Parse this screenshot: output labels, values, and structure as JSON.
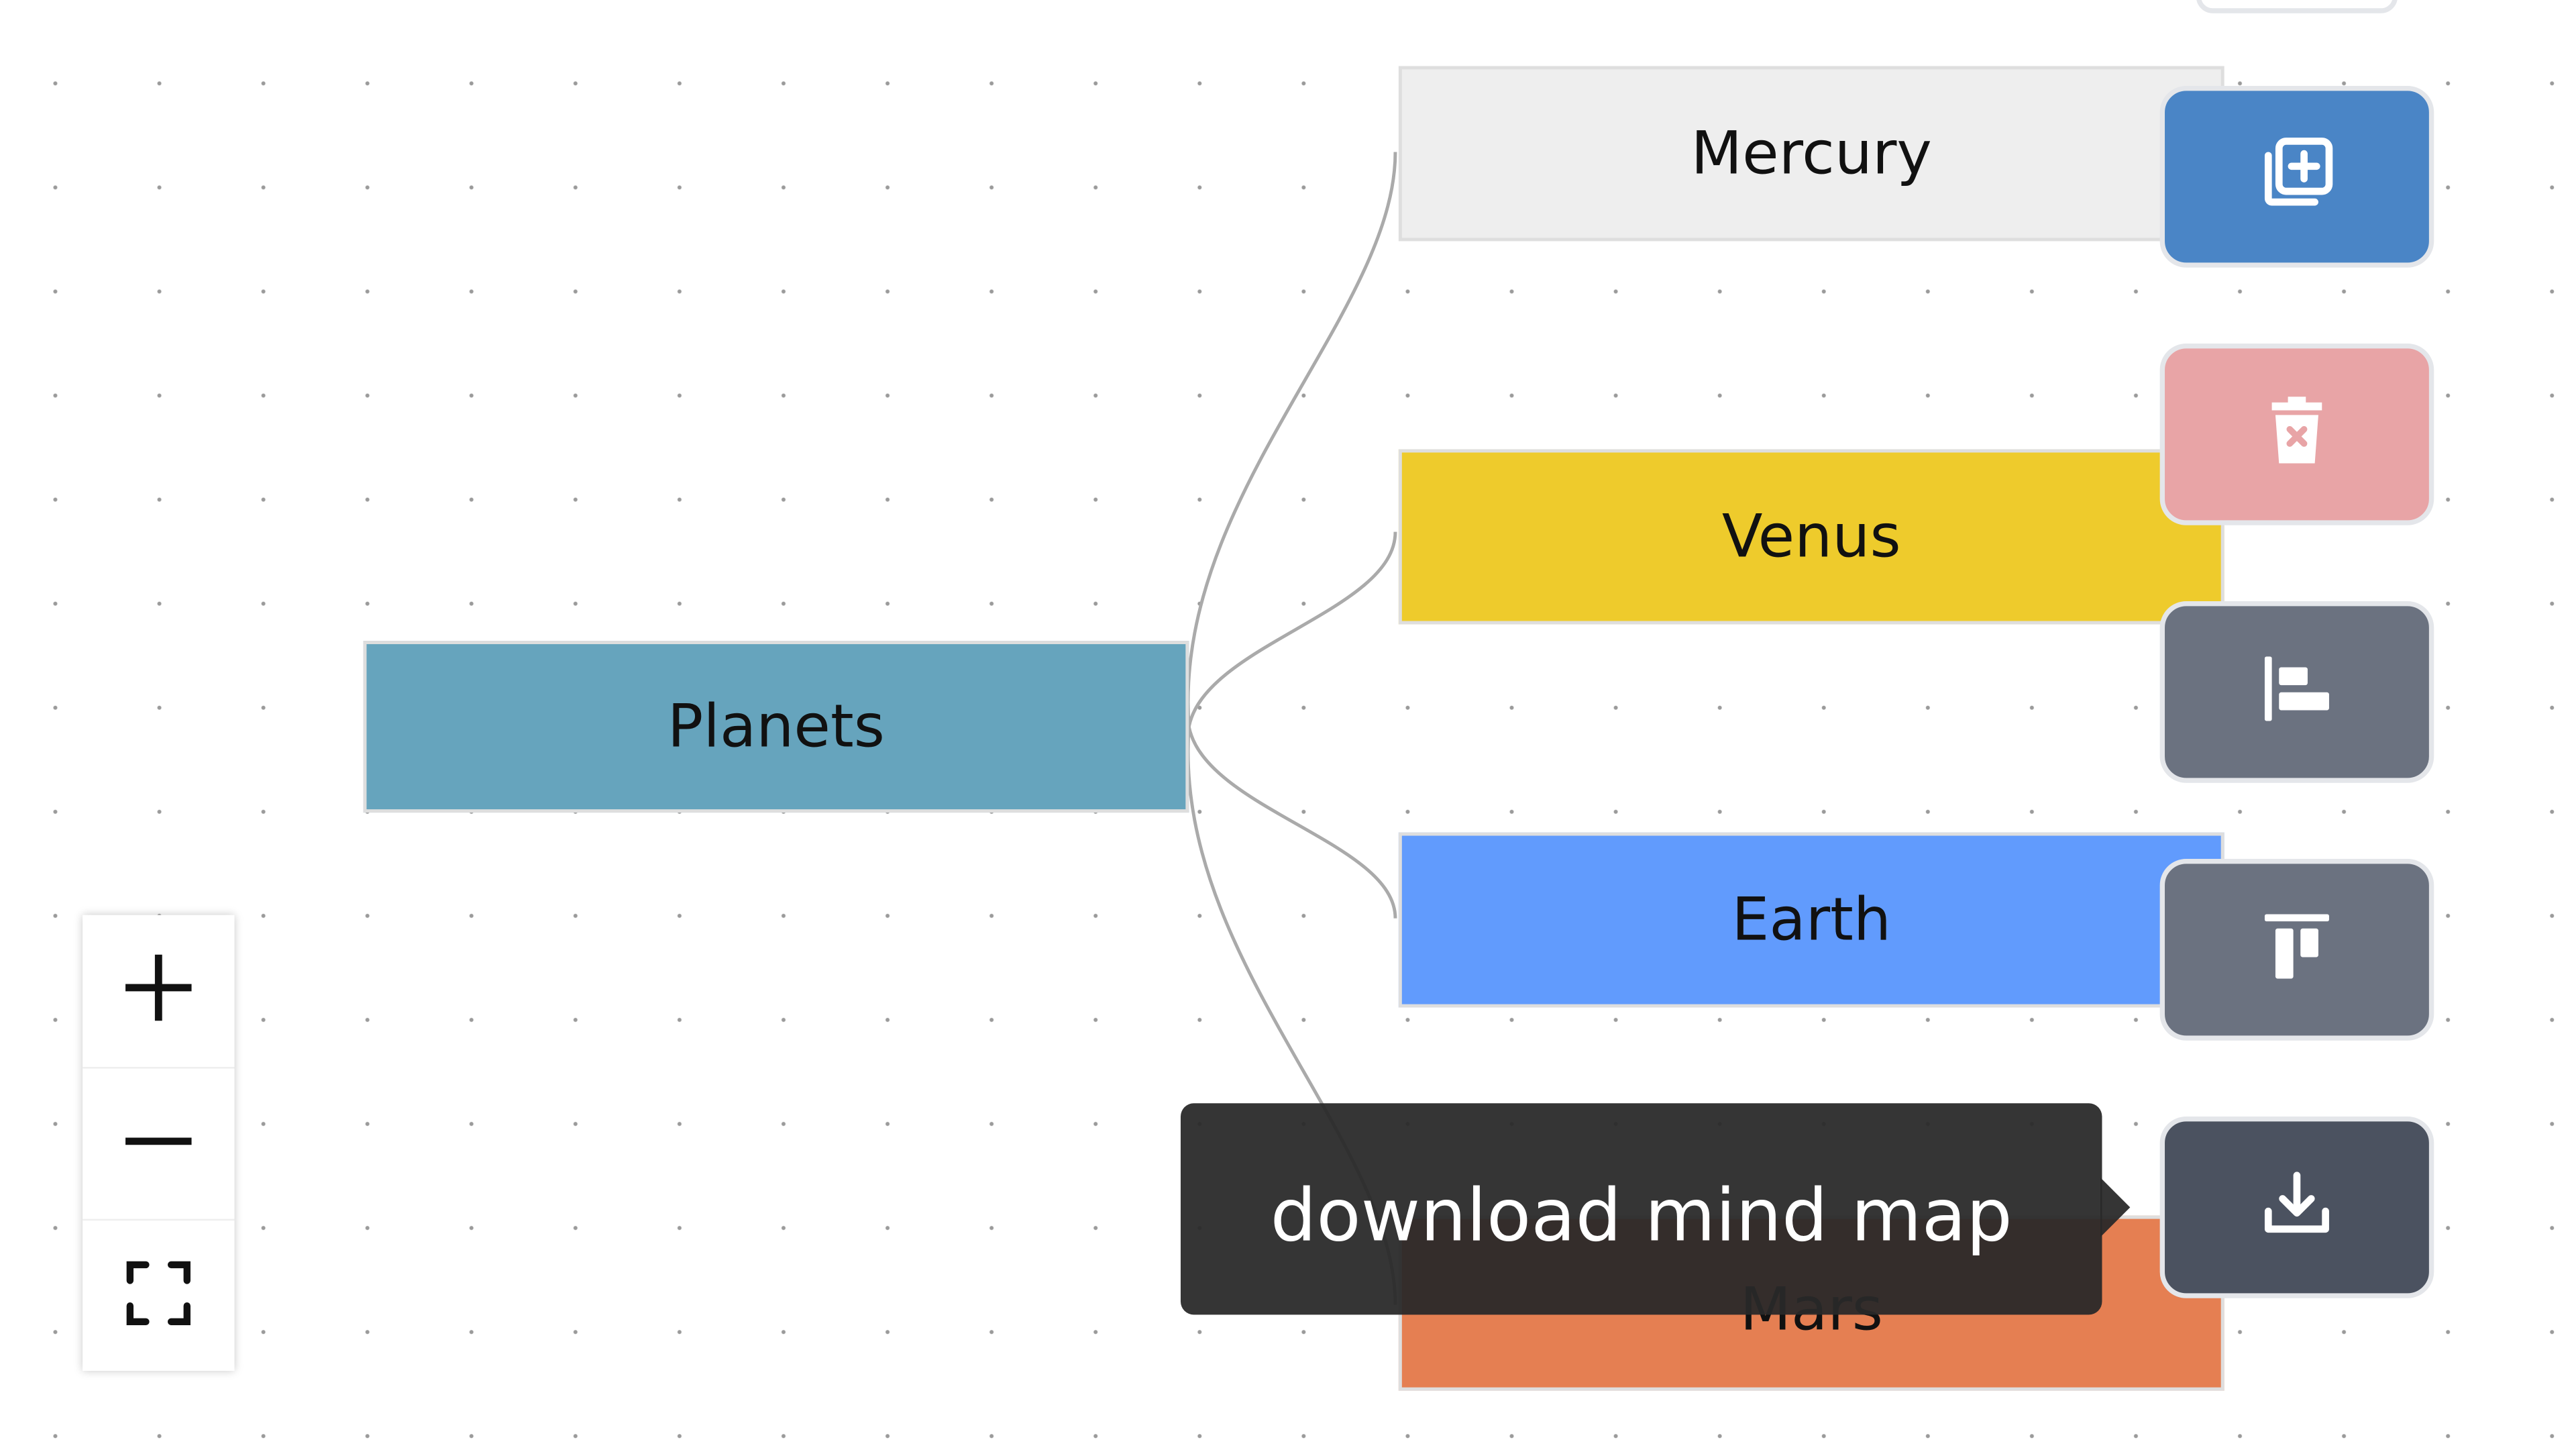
{
  "mindmap": {
    "root": {
      "label": "Planets",
      "color": "#66a4bd"
    },
    "children": [
      {
        "label": "Mercury",
        "color": "#eeeeee"
      },
      {
        "label": "Venus",
        "color": "#eecb2c"
      },
      {
        "label": "Earth",
        "color": "#619bfd"
      },
      {
        "label": "Mars",
        "color": "#e57f52"
      }
    ],
    "edge_color": "#aaaaaa"
  },
  "toolbar": {
    "items": [
      {
        "action": "add-node",
        "icon": "add-node-icon",
        "color": "#4a85c6"
      },
      {
        "action": "delete-node",
        "icon": "trash-icon",
        "color": "#e8a4a6"
      },
      {
        "action": "align-left",
        "icon": "align-left-icon",
        "color": "#6b7280"
      },
      {
        "action": "align-top",
        "icon": "align-top-icon",
        "color": "#6b7280"
      },
      {
        "action": "download",
        "icon": "download-icon",
        "color": "#4b5260"
      }
    ]
  },
  "zoom_controls": {
    "items": [
      {
        "action": "zoom-in",
        "icon": "plus-icon"
      },
      {
        "action": "zoom-out",
        "icon": "minus-icon"
      },
      {
        "action": "fit-view",
        "icon": "fullscreen-icon"
      }
    ]
  },
  "tooltip": {
    "text": "download mind map"
  }
}
